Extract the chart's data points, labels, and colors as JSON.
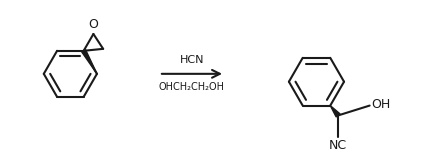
{
  "background_color": "#ffffff",
  "line_color": "#1a1a1a",
  "line_width": 1.5,
  "arrow_color": "#1a1a1a",
  "text_color": "#1a1a1a",
  "reagent_top": "HCN",
  "reagent_bottom": "OHCH₂CH₂OH",
  "label_NC": "NC",
  "label_OH": "OH",
  "label_O": "O"
}
